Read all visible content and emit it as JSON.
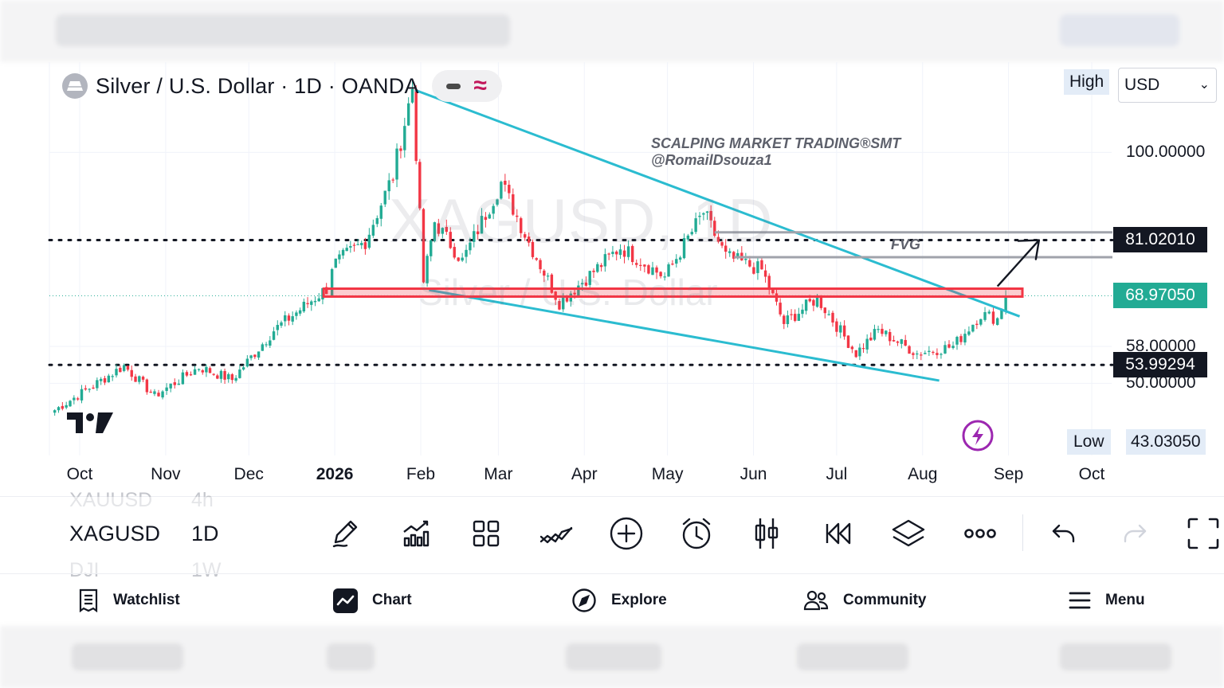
{
  "header": {
    "symbol_title": "Silver / U.S. Dollar · 1D · OANDA",
    "logo_icon": "silver-bar-icon",
    "pill_icons": [
      "minus-icon",
      "wave-indicator-icon"
    ]
  },
  "price_scale": {
    "high_label": "High",
    "currency": "USD",
    "currency_chevron": "⌄",
    "low_label": "Low",
    "low_value": "43.03050",
    "tick_labels": [
      {
        "price": 100.0,
        "text": "100.00000"
      },
      {
        "price": 58.0,
        "text": "58.00000"
      },
      {
        "price": 50.0,
        "text": "50.00000"
      }
    ],
    "markers": [
      {
        "price": 81.0201,
        "text": "81.02010",
        "color": "#131722"
      },
      {
        "price": 68.9705,
        "text": "68.97050",
        "color": "#22ab94"
      },
      {
        "price": 53.99294,
        "text": "53.99294",
        "color": "#131722"
      }
    ]
  },
  "time_axis": {
    "labels": [
      {
        "date": "2025-10-01",
        "text": "Oct",
        "bold": false
      },
      {
        "date": "2025-11-01",
        "text": "Nov",
        "bold": false
      },
      {
        "date": "2025-12-01",
        "text": "Dec",
        "bold": false
      },
      {
        "date": "2026-01-01",
        "text": "2026",
        "bold": true
      },
      {
        "date": "2026-02-01",
        "text": "Feb",
        "bold": false
      },
      {
        "date": "2026-03-01",
        "text": "Mar",
        "bold": false
      },
      {
        "date": "2026-04-01",
        "text": "Apr",
        "bold": false
      },
      {
        "date": "2026-05-01",
        "text": "May",
        "bold": false
      },
      {
        "date": "2026-06-01",
        "text": "Jun",
        "bold": false
      },
      {
        "date": "2026-07-01",
        "text": "Jul",
        "bold": false
      },
      {
        "date": "2026-08-01",
        "text": "Aug",
        "bold": false
      },
      {
        "date": "2026-09-01",
        "text": "Sep",
        "bold": false
      },
      {
        "date": "2026-10-01",
        "text": "Oct",
        "bold": false
      }
    ]
  },
  "chart": {
    "watermark_symbol": "XAGUSD, 1D",
    "watermark_name": "Silver / U.S. Dollar",
    "annotation_title": "SCALPING MARKET TRADING®SMT",
    "annotation_handle": "@RomailDsouza1",
    "fvg_label": "FVG",
    "colors": {
      "up": "#22ab94",
      "down": "#f23645",
      "channel": "#2bbcd0",
      "zone": "#f23645"
    },
    "price_path": [
      {
        "date": "2025-09-22",
        "price": 44.2
      },
      {
        "date": "2025-10-17",
        "price": 53.8
      },
      {
        "date": "2025-10-28",
        "price": 47.3
      },
      {
        "date": "2025-11-13",
        "price": 53.5
      },
      {
        "date": "2025-11-25",
        "price": 50.8
      },
      {
        "date": "2025-12-10",
        "price": 61.5
      },
      {
        "date": "2025-12-29",
        "price": 70.5
      },
      {
        "date": "2025-12-31",
        "price": 75.5
      },
      {
        "date": "2026-01-12",
        "price": 80.8
      },
      {
        "date": "2026-01-22",
        "price": 95.0
      },
      {
        "date": "2026-01-29",
        "price": 114.0
      },
      {
        "date": "2026-02-02",
        "price": 72.0
      },
      {
        "date": "2026-02-06",
        "price": 85.0
      },
      {
        "date": "2026-02-16",
        "price": 76.5
      },
      {
        "date": "2026-03-02",
        "price": 93.5
      },
      {
        "date": "2026-03-12",
        "price": 80.5
      },
      {
        "date": "2026-03-23",
        "price": 67.5
      },
      {
        "date": "2026-04-14",
        "price": 79.5
      },
      {
        "date": "2026-04-30",
        "price": 73.0
      },
      {
        "date": "2026-05-14",
        "price": 87.0
      },
      {
        "date": "2026-05-22",
        "price": 77.5
      },
      {
        "date": "2026-06-04",
        "price": 74.5
      },
      {
        "date": "2026-06-12",
        "price": 63.0
      },
      {
        "date": "2026-06-24",
        "price": 68.5
      },
      {
        "date": "2026-07-08",
        "price": 56.5
      },
      {
        "date": "2026-07-16",
        "price": 61.5
      },
      {
        "date": "2026-07-30",
        "price": 56.5
      },
      {
        "date": "2026-08-12",
        "price": 58.0
      },
      {
        "date": "2026-08-22",
        "price": 65.0
      },
      {
        "date": "2026-08-28",
        "price": 64.0
      },
      {
        "date": "2026-08-31",
        "price": 69.0
      }
    ]
  },
  "toolbar": {
    "symbols": [
      {
        "symbol": "XAUUSD",
        "timeframe": "4h",
        "state": "ghost"
      },
      {
        "symbol": "XAGUSD",
        "timeframe": "1D",
        "state": "current"
      },
      {
        "symbol": "DJI",
        "timeframe": "1W",
        "state": "ghost"
      }
    ],
    "tools": [
      "pencil-draw-icon",
      "indicators-chart-icon",
      "layouts-grid-icon",
      "trend-lines-icon",
      "add-circle-icon",
      "alarm-clock-icon",
      "candles-icon",
      "replay-rewind-icon",
      "layers-icon",
      "more-dots-icon",
      "undo-icon",
      "redo-icon",
      "fullscreen-icon"
    ]
  },
  "bottom_nav": [
    {
      "label": "Watchlist",
      "icon": "watchlist-icon"
    },
    {
      "label": "Chart",
      "icon": "chart-icon"
    },
    {
      "label": "Explore",
      "icon": "compass-icon"
    },
    {
      "label": "Community",
      "icon": "community-icon"
    },
    {
      "label": "Menu",
      "icon": "hamburger-menu-icon"
    }
  ]
}
